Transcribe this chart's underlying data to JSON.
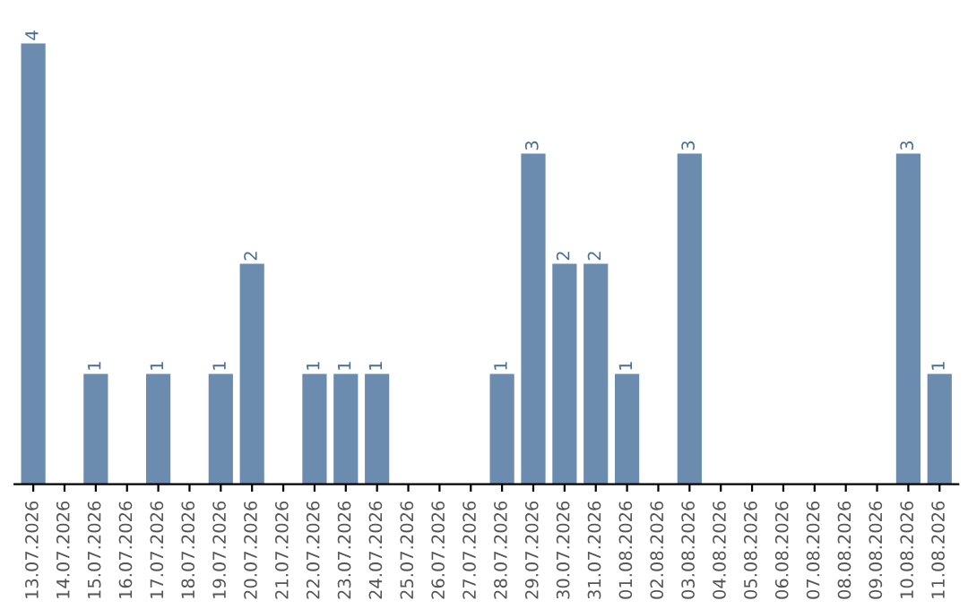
{
  "chart_data": {
    "type": "bar",
    "categories": [
      "13.07.2026",
      "14.07.2026",
      "15.07.2026",
      "16.07.2026",
      "17.07.2026",
      "18.07.2026",
      "19.07.2026",
      "20.07.2026",
      "21.07.2026",
      "22.07.2026",
      "23.07.2026",
      "24.07.2026",
      "25.07.2026",
      "26.07.2026",
      "27.07.2026",
      "28.07.2026",
      "29.07.2026",
      "30.07.2026",
      "31.07.2026",
      "01.08.2026",
      "02.08.2026",
      "03.08.2026",
      "04.08.2026",
      "05.08.2026",
      "06.08.2026",
      "07.08.2026",
      "08.08.2026",
      "09.08.2026",
      "10.08.2026",
      "11.08.2026"
    ],
    "values": [
      4,
      0,
      1,
      0,
      1,
      0,
      1,
      2,
      0,
      1,
      1,
      1,
      0,
      0,
      0,
      1,
      3,
      2,
      2,
      1,
      0,
      3,
      0,
      0,
      0,
      0,
      0,
      0,
      3,
      1
    ],
    "value_labels": [
      "4",
      null,
      "1",
      null,
      "1",
      null,
      "1",
      "2",
      null,
      "1",
      "1",
      "1",
      null,
      null,
      null,
      "1",
      "3",
      "2",
      "2",
      "1",
      null,
      "3",
      null,
      null,
      null,
      null,
      null,
      null,
      "3",
      "1"
    ],
    "color": "#6b8cae",
    "tick_labels": "x",
    "grid": false,
    "legend": false
  }
}
